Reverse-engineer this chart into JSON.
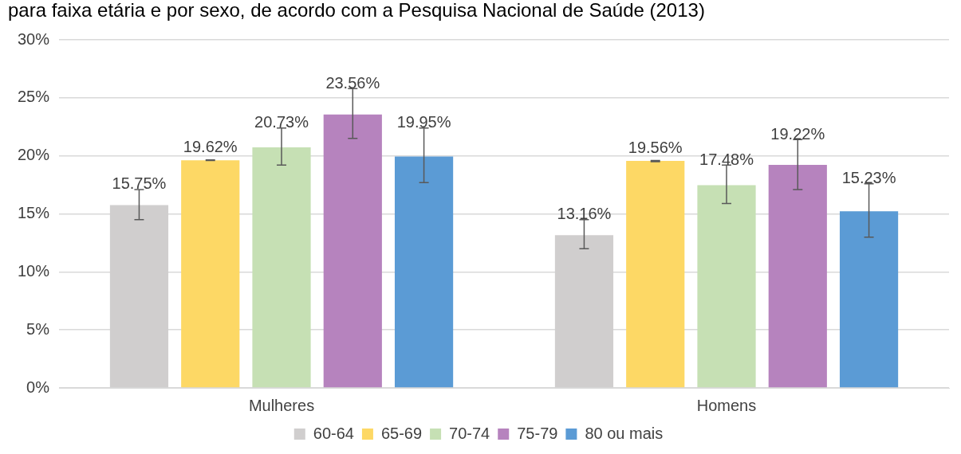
{
  "chart_data": {
    "type": "bar",
    "title": "para faixa etária e por sexo, de acordo com a Pesquisa Nacional de Saúde (2013)",
    "categories": [
      "Mulheres",
      "Homens"
    ],
    "series": [
      {
        "name": "60-64",
        "color": "#d0cece",
        "values": [
          15.75,
          13.16
        ],
        "errors": [
          [
            14.5,
            17.1
          ],
          [
            12.0,
            14.5
          ]
        ],
        "value_labels": [
          "15.75%",
          "13.16%"
        ]
      },
      {
        "name": "65-69",
        "color": "#fdd865",
        "values": [
          19.62,
          19.56
        ],
        "errors": [
          [
            19.6,
            19.65
          ],
          [
            19.5,
            19.6
          ]
        ],
        "value_labels": [
          "19.62%",
          "19.56%"
        ]
      },
      {
        "name": "70-74",
        "color": "#c6e0b4",
        "values": [
          20.73,
          17.48
        ],
        "errors": [
          [
            19.2,
            22.4
          ],
          [
            15.9,
            19.2
          ]
        ],
        "value_labels": [
          "20.73%",
          "17.48%"
        ]
      },
      {
        "name": "75-79",
        "color": "#b683be",
        "values": [
          23.56,
          19.22
        ],
        "errors": [
          [
            21.5,
            25.8
          ],
          [
            17.1,
            21.4
          ]
        ],
        "value_labels": [
          "23.56%",
          "19.22%"
        ]
      },
      {
        "name": "80 ou mais",
        "color": "#5b9bd5",
        "values": [
          19.95,
          15.23
        ],
        "errors": [
          [
            17.7,
            22.4
          ],
          [
            13.0,
            17.6
          ]
        ],
        "value_labels": [
          "19.95%",
          "15.23%"
        ]
      }
    ],
    "ylim": [
      0,
      30
    ],
    "yticks": [
      {
        "value": 0,
        "label": "0%"
      },
      {
        "value": 5,
        "label": "5%"
      },
      {
        "value": 10,
        "label": "10%"
      },
      {
        "value": 15,
        "label": "15%"
      },
      {
        "value": 20,
        "label": "20%"
      },
      {
        "value": 25,
        "label": "25%"
      },
      {
        "value": 30,
        "label": "30%"
      }
    ],
    "grid": "y",
    "legend": "bottom"
  }
}
